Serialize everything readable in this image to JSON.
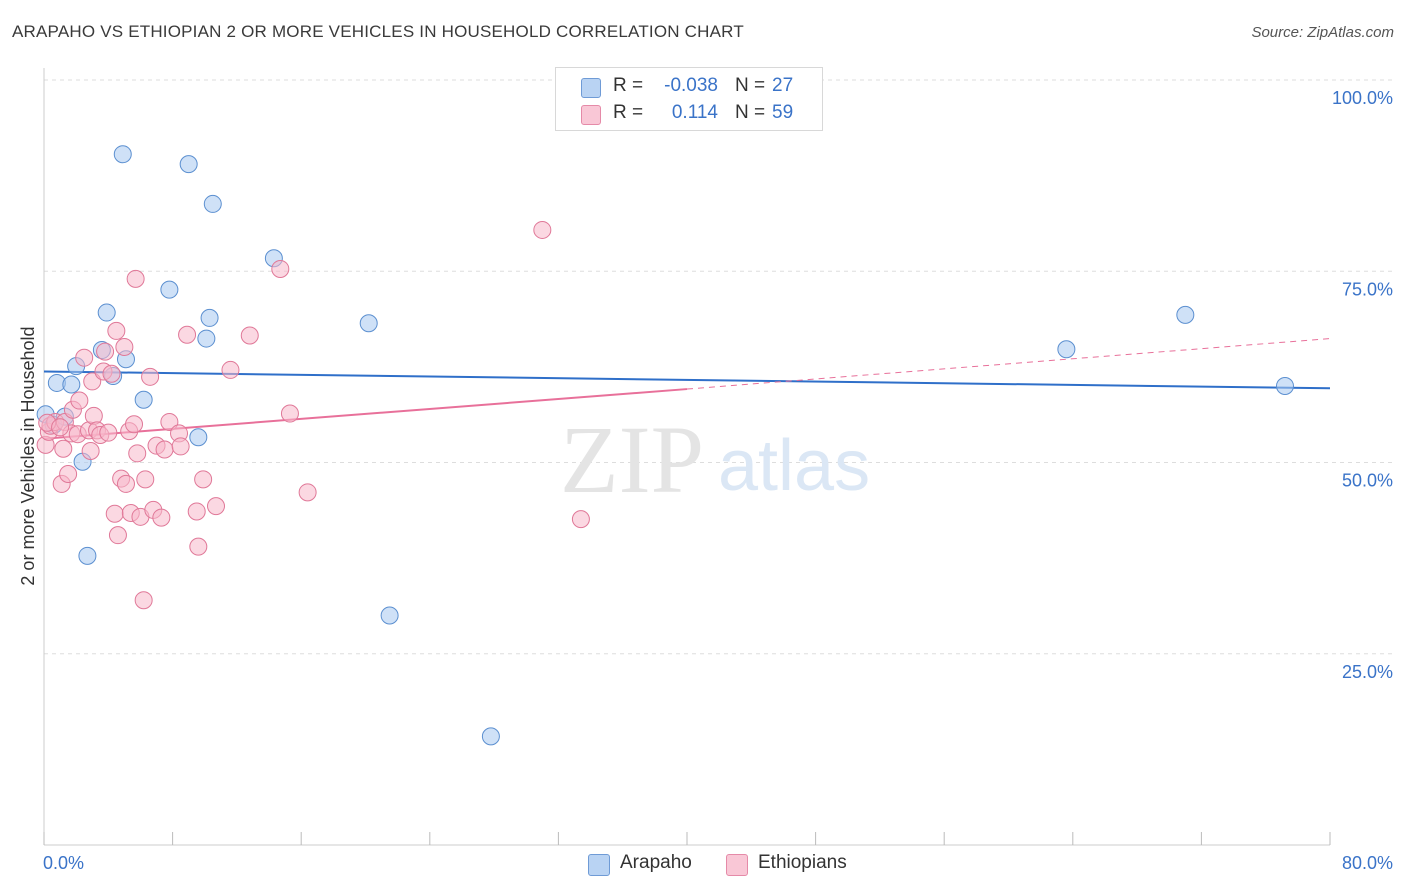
{
  "header": {
    "title": "ARAPAHO VS ETHIOPIAN 2 OR MORE VEHICLES IN HOUSEHOLD CORRELATION CHART",
    "source": "Source: ZipAtlas.com"
  },
  "legend": {
    "rows": [
      {
        "r_label": "R =",
        "r_value": "-0.038",
        "n_label": "N =",
        "n_value": "27"
      },
      {
        "r_label": "R =",
        "r_value": "0.114",
        "n_label": "N =",
        "n_value": "59"
      }
    ]
  },
  "bottom_legend": {
    "arapaho": "Arapaho",
    "ethiopians": "Ethiopians"
  },
  "watermark": {
    "zip": "ZIP",
    "atlas": "atlas"
  },
  "colors": {
    "arapaho_fill": "#a8c8f0",
    "arapaho_stroke": "#5b8fd0",
    "arapaho_line": "#2f6fc9",
    "ethiopian_fill": "#f7b8cb",
    "ethiopian_stroke": "#e07898",
    "ethiopian_line": "#e8709a",
    "axis_label": "#3a73c8",
    "grid": "#dddddd"
  },
  "chart_data": {
    "type": "scatter",
    "title": "ARAPAHO VS ETHIOPIAN 2 OR MORE VEHICLES IN HOUSEHOLD CORRELATION CHART",
    "xlabel": "",
    "ylabel": "2 or more Vehicles in Household",
    "xlim": [
      0,
      80
    ],
    "ylim": [
      0,
      100
    ],
    "x_tick_labels": [
      "0.0%",
      "80.0%"
    ],
    "y_ticks": [
      {
        "value": 100,
        "label": "100.0%"
      },
      {
        "value": 75,
        "label": "75.0%"
      },
      {
        "value": 50,
        "label": "50.0%"
      },
      {
        "value": 25,
        "label": "25.0%"
      }
    ],
    "grid": true,
    "series": [
      {
        "name": "Arapaho",
        "R": -0.038,
        "N": 27,
        "trend": {
          "x_start": 0,
          "y_start": 61.9,
          "x_end": 80,
          "y_end": 59.7
        },
        "points": [
          [
            0.1,
            56.3
          ],
          [
            0.6,
            54.9
          ],
          [
            0.8,
            60.4
          ],
          [
            1.3,
            56.0
          ],
          [
            1.7,
            60.2
          ],
          [
            2.0,
            62.6
          ],
          [
            2.4,
            50.1
          ],
          [
            2.7,
            37.8
          ],
          [
            3.6,
            64.7
          ],
          [
            3.9,
            69.6
          ],
          [
            4.3,
            61.3
          ],
          [
            5.1,
            63.5
          ],
          [
            4.9,
            90.3
          ],
          [
            6.2,
            58.2
          ],
          [
            7.8,
            72.6
          ],
          [
            9.0,
            89.0
          ],
          [
            9.6,
            53.3
          ],
          [
            10.1,
            66.2
          ],
          [
            10.3,
            68.9
          ],
          [
            10.5,
            83.8
          ],
          [
            14.3,
            76.7
          ],
          [
            20.2,
            68.2
          ],
          [
            21.5,
            30.0
          ],
          [
            27.8,
            14.2
          ],
          [
            63.6,
            64.8
          ],
          [
            71.0,
            69.3
          ],
          [
            77.2,
            60.0
          ]
        ]
      },
      {
        "name": "Ethiopians",
        "R": 0.114,
        "N": 59,
        "trend": {
          "x_start": 0,
          "y_start": 53.1,
          "x_end": 40,
          "y_end": 59.6,
          "dashed_to_x": 80,
          "dashed_to_y": 66.2
        },
        "points": [
          [
            0.1,
            52.3
          ],
          [
            0.3,
            54.0
          ],
          [
            0.4,
            54.8
          ],
          [
            0.7,
            55.3
          ],
          [
            1.1,
            47.2
          ],
          [
            1.2,
            51.8
          ],
          [
            1.3,
            55.3
          ],
          [
            1.5,
            48.5
          ],
          [
            1.7,
            53.8
          ],
          [
            1.8,
            56.9
          ],
          [
            2.1,
            53.7
          ],
          [
            2.2,
            58.1
          ],
          [
            2.5,
            63.7
          ],
          [
            2.8,
            54.2
          ],
          [
            2.9,
            51.5
          ],
          [
            3.0,
            60.6
          ],
          [
            3.1,
            56.1
          ],
          [
            3.3,
            54.2
          ],
          [
            3.5,
            53.6
          ],
          [
            3.7,
            61.9
          ],
          [
            3.8,
            64.5
          ],
          [
            4.0,
            53.9
          ],
          [
            4.2,
            61.6
          ],
          [
            4.4,
            43.3
          ],
          [
            4.5,
            67.2
          ],
          [
            4.6,
            40.5
          ],
          [
            4.8,
            47.9
          ],
          [
            5.0,
            65.1
          ],
          [
            5.1,
            47.2
          ],
          [
            5.3,
            54.1
          ],
          [
            5.4,
            43.4
          ],
          [
            5.6,
            55.0
          ],
          [
            5.7,
            74.0
          ],
          [
            5.8,
            51.2
          ],
          [
            6.0,
            42.9
          ],
          [
            6.2,
            32.0
          ],
          [
            6.3,
            47.8
          ],
          [
            6.6,
            61.2
          ],
          [
            6.8,
            43.8
          ],
          [
            7.0,
            52.2
          ],
          [
            7.3,
            42.8
          ],
          [
            7.5,
            51.7
          ],
          [
            7.8,
            55.3
          ],
          [
            8.4,
            53.8
          ],
          [
            8.5,
            52.1
          ],
          [
            8.9,
            66.7
          ],
          [
            9.5,
            43.6
          ],
          [
            9.6,
            39.0
          ],
          [
            9.9,
            47.8
          ],
          [
            10.7,
            44.3
          ],
          [
            11.6,
            62.1
          ],
          [
            12.8,
            66.6
          ],
          [
            14.7,
            75.3
          ],
          [
            15.3,
            56.4
          ],
          [
            16.4,
            46.1
          ],
          [
            31.0,
            80.4
          ],
          [
            33.4,
            42.6
          ],
          [
            0.2,
            55.2
          ],
          [
            1.0,
            54.6
          ]
        ]
      }
    ]
  }
}
